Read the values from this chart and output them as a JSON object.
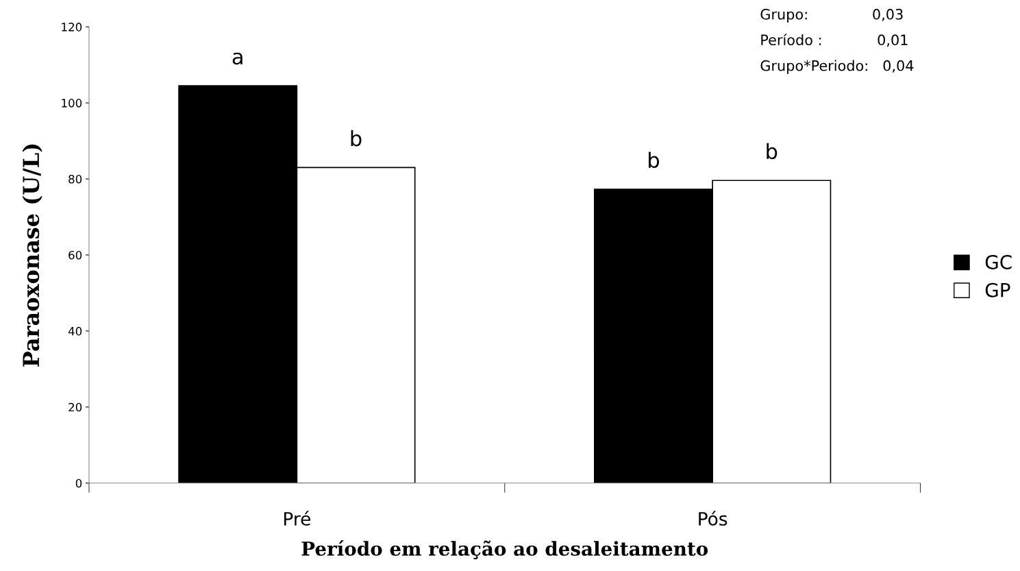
{
  "chart_data": {
    "type": "bar",
    "xlabel": "Período em relação ao desaleitamento",
    "ylabel": "Paraoxonase (U/L)",
    "categories": [
      "Pré",
      "Pós"
    ],
    "series": [
      {
        "name": "GC",
        "color": "#000000",
        "values": [
          104.5,
          77.3
        ],
        "value_labels": [
          "a",
          "b"
        ]
      },
      {
        "name": "GP",
        "color": "#ffffff",
        "values": [
          83.0,
          79.6
        ],
        "value_labels": [
          "b",
          "b"
        ]
      }
    ],
    "ylim": [
      0,
      120
    ],
    "yticks": [
      0,
      20,
      40,
      60,
      80,
      100,
      120
    ],
    "annotations": [
      "Grupo:              0,03",
      "Período :            0,01",
      "Grupo*Periodo:   0,04"
    ],
    "grid": false,
    "legend": "right"
  }
}
